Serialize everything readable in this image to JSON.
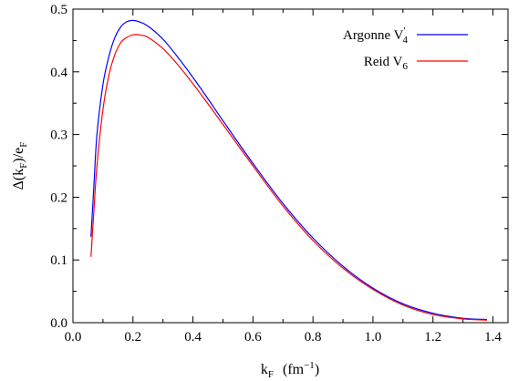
{
  "chart_data": {
    "type": "line",
    "xlabel": {
      "main": "k",
      "sub": "F",
      "unit_open": "(fm",
      "unit_sup": "−1",
      "unit_close": ")"
    },
    "ylabel": {
      "pre": "Δ(k",
      "sub1": "F",
      "mid": ")/e",
      "sub2": "F"
    },
    "xlim": [
      0.0,
      1.45
    ],
    "ylim": [
      0.0,
      0.5
    ],
    "xticks": [
      0.0,
      0.2,
      0.4,
      0.6,
      0.8,
      1.0,
      1.2,
      1.4
    ],
    "xtick_labels": [
      "0.0",
      "0.2",
      "0.4",
      "0.6",
      "0.8",
      "1.0",
      "1.2",
      "1.4"
    ],
    "yticks": [
      0.0,
      0.1,
      0.2,
      0.3,
      0.4,
      0.5
    ],
    "ytick_labels": [
      "0.0",
      "0.1",
      "0.2",
      "0.3",
      "0.4",
      "0.5"
    ],
    "grid": false,
    "legend_position": "top-right",
    "series": [
      {
        "name": "Argonne V'4",
        "legend": {
          "main": "Argonne V",
          "sub": "4",
          "sup": "'"
        },
        "color": "#0000ff",
        "x": [
          0.06,
          0.07,
          0.08,
          0.1,
          0.12,
          0.14,
          0.16,
          0.18,
          0.2,
          0.22,
          0.25,
          0.3,
          0.35,
          0.4,
          0.45,
          0.5,
          0.6,
          0.7,
          0.8,
          0.9,
          1.0,
          1.1,
          1.2,
          1.3,
          1.38
        ],
        "y": [
          0.137,
          0.22,
          0.3,
          0.38,
          0.425,
          0.455,
          0.472,
          0.48,
          0.482,
          0.48,
          0.473,
          0.452,
          0.423,
          0.391,
          0.357,
          0.322,
          0.254,
          0.19,
          0.135,
          0.09,
          0.055,
          0.03,
          0.015,
          0.007,
          0.005
        ]
      },
      {
        "name": "Reid V6",
        "legend": {
          "main": "Reid V",
          "sub": "6",
          "sup": ""
        },
        "color": "#ff0000",
        "x": [
          0.06,
          0.07,
          0.08,
          0.1,
          0.12,
          0.14,
          0.16,
          0.18,
          0.2,
          0.22,
          0.25,
          0.3,
          0.35,
          0.4,
          0.45,
          0.5,
          0.6,
          0.7,
          0.8,
          0.9,
          1.0,
          1.1,
          1.2,
          1.3,
          1.38
        ],
        "y": [
          0.105,
          0.18,
          0.25,
          0.34,
          0.395,
          0.428,
          0.447,
          0.455,
          0.459,
          0.459,
          0.455,
          0.437,
          0.411,
          0.381,
          0.349,
          0.316,
          0.25,
          0.186,
          0.131,
          0.087,
          0.053,
          0.028,
          0.013,
          0.006,
          0.004
        ]
      }
    ]
  }
}
